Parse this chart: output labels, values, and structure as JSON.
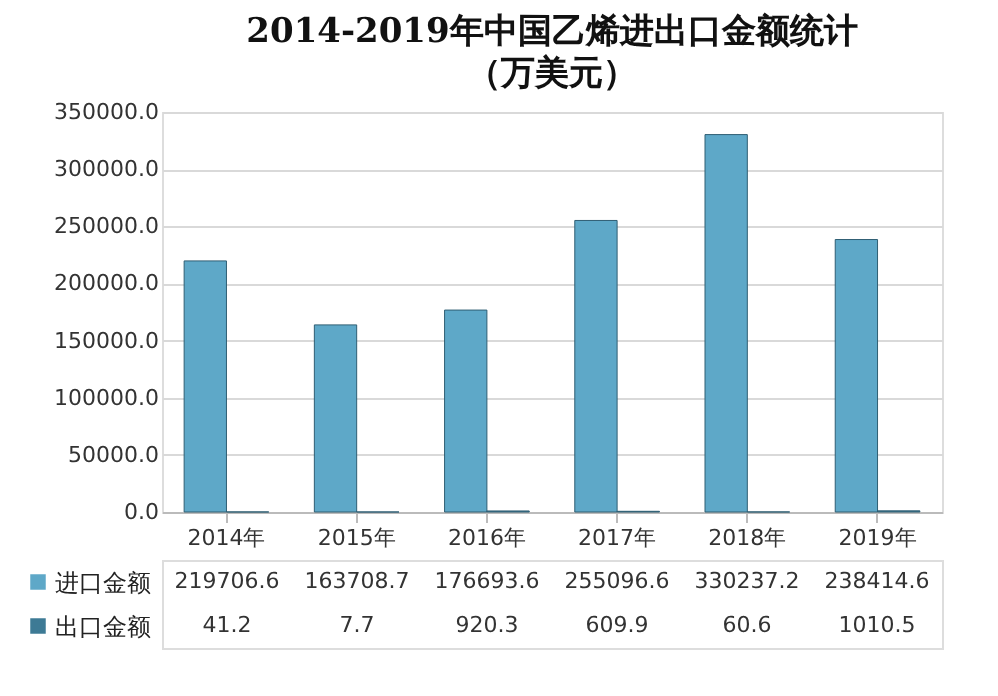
{
  "chart_data": {
    "type": "bar",
    "title": "2014-2019年中国乙烯进出口金额统计",
    "subtitle": "（万美元）",
    "categories": [
      "2014年",
      "2015年",
      "2016年",
      "2017年",
      "2018年",
      "2019年"
    ],
    "series": [
      {
        "name": "进口金额",
        "color": "#5ea8c8",
        "values": [
          219706.6,
          163708.7,
          176693.6,
          255096.6,
          330237.2,
          238414.6
        ]
      },
      {
        "name": "出口金额",
        "color": "#3d7a95",
        "values": [
          41.2,
          7.7,
          920.3,
          609.9,
          60.6,
          1010.5
        ]
      }
    ],
    "ylim": [
      0,
      350000
    ],
    "yticks": [
      {
        "value": 0,
        "label": "0.0"
      },
      {
        "value": 50000,
        "label": "50000.0"
      },
      {
        "value": 100000,
        "label": "100000.0"
      },
      {
        "value": 150000,
        "label": "150000.0"
      },
      {
        "value": 200000,
        "label": "200000.0"
      },
      {
        "value": 250000,
        "label": "250000.0"
      },
      {
        "value": 300000,
        "label": "300000.0"
      },
      {
        "value": 350000,
        "label": "350000.0"
      }
    ],
    "grid": "y",
    "legend": "bottom",
    "data_labels": true
  }
}
